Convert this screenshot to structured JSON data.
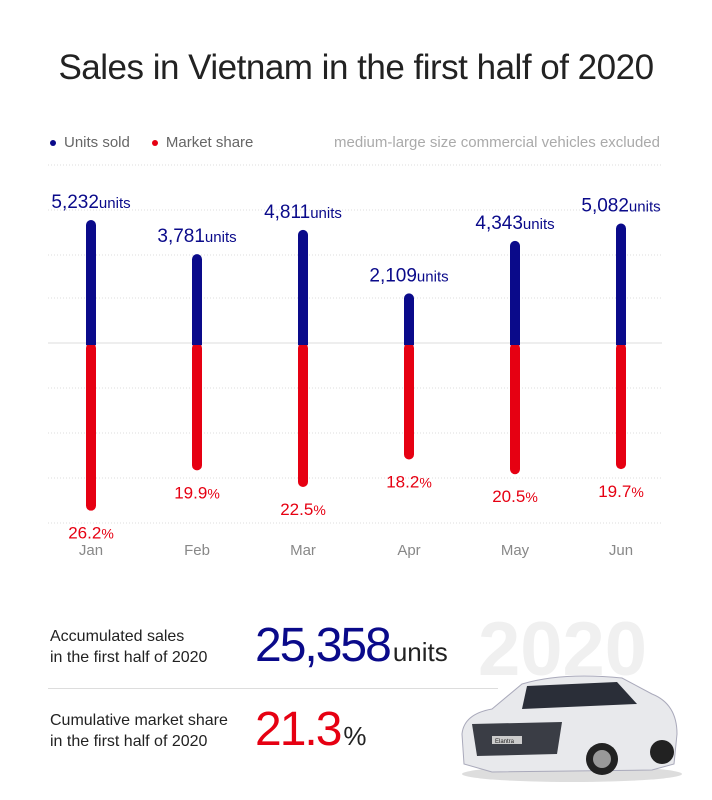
{
  "title": "Sales in Vietnam in the first half of 2020",
  "legend": {
    "units": "Units sold",
    "share": "Market share"
  },
  "note": "medium-large size commercial vehicles excluded",
  "colors": {
    "units": "#0a0a8a",
    "share": "#e60012"
  },
  "chart_data": {
    "type": "bar",
    "categories": [
      "Jan",
      "Feb",
      "Mar",
      "Apr",
      "May",
      "Jun"
    ],
    "series": [
      {
        "name": "Units sold",
        "values": [
          5232,
          3781,
          4811,
          2109,
          4343,
          5082
        ],
        "labels": [
          "5,232",
          "3,781",
          "4,811",
          "2,109",
          "4,343",
          "5,082"
        ],
        "suffix": "units"
      },
      {
        "name": "Market share",
        "values": [
          26.2,
          19.9,
          22.5,
          18.2,
          20.5,
          19.7
        ],
        "labels": [
          "26.2",
          "19.9",
          "22.5",
          "18.2",
          "20.5",
          "19.7"
        ],
        "suffix": "%"
      }
    ],
    "grid": true
  },
  "summary": {
    "sales_label_1": "Accumulated sales",
    "sales_label_2": "in the first half of 2020",
    "sales_value": "25,358",
    "sales_unit": "units",
    "share_label_1": "Cumulative market share",
    "share_label_2": "in the first half of 2020",
    "share_value": "21.3",
    "share_unit": "%",
    "year": "2020",
    "car_badge": "Elantra"
  }
}
